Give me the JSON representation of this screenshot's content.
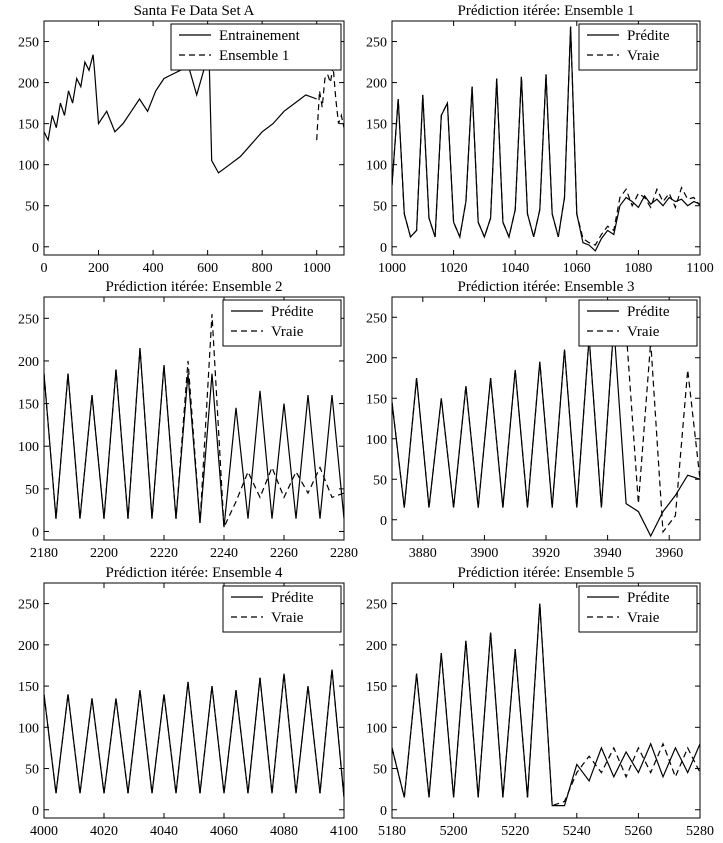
{
  "colors": {
    "line": "#000000",
    "background": "#ffffff"
  },
  "chart_data": [
    {
      "type": "line",
      "title": "Santa Fe Data Set A",
      "xlim": [
        0,
        1100
      ],
      "ylim": [
        -10,
        275
      ],
      "xticks": [
        0,
        200,
        400,
        600,
        800,
        1000
      ],
      "yticks": [
        0,
        50,
        100,
        150,
        200,
        250
      ],
      "legend_position": "top-right",
      "legend": [
        "Entrainement",
        "Ensemble 1"
      ],
      "series": [
        {
          "name": "Entrainement",
          "style": "solid",
          "x": [
            0,
            15,
            30,
            45,
            60,
            75,
            90,
            105,
            120,
            135,
            150,
            165,
            180,
            185,
            200,
            230,
            260,
            290,
            320,
            350,
            380,
            410,
            440,
            470,
            500,
            530,
            560,
            590,
            605,
            615,
            640,
            680,
            720,
            760,
            800,
            840,
            880,
            920,
            960,
            1000
          ],
          "y": [
            140,
            130,
            160,
            145,
            175,
            160,
            190,
            175,
            205,
            195,
            225,
            215,
            234,
            215,
            150,
            165,
            140,
            150,
            165,
            180,
            165,
            190,
            205,
            210,
            215,
            220,
            185,
            220,
            235,
            105,
            90,
            100,
            110,
            125,
            140,
            150,
            165,
            175,
            185,
            180
          ]
        },
        {
          "name": "Ensemble 1",
          "style": "dashed",
          "x": [
            1000,
            1010,
            1020,
            1030,
            1040,
            1050,
            1060,
            1070,
            1080,
            1090,
            1100
          ],
          "y": [
            130,
            190,
            170,
            205,
            210,
            200,
            220,
            180,
            150,
            160,
            145
          ]
        }
      ]
    },
    {
      "type": "line",
      "title": "Prédiction itérée: Ensemble 1",
      "xlim": [
        1000,
        1100
      ],
      "ylim": [
        -10,
        275
      ],
      "xticks": [
        1000,
        1020,
        1040,
        1060,
        1080,
        1100
      ],
      "yticks": [
        0,
        50,
        100,
        150,
        200,
        250
      ],
      "legend_position": "top-right",
      "legend": [
        "Prédite",
        "Vraie"
      ],
      "series": [
        {
          "name": "Prédite",
          "style": "solid",
          "x": [
            1000,
            1002,
            1004,
            1006,
            1008,
            1010,
            1012,
            1014,
            1016,
            1018,
            1020,
            1022,
            1024,
            1026,
            1028,
            1030,
            1032,
            1034,
            1036,
            1038,
            1040,
            1042,
            1044,
            1046,
            1048,
            1050,
            1052,
            1054,
            1056,
            1058,
            1060,
            1062,
            1064,
            1066,
            1068,
            1070,
            1072,
            1074,
            1076,
            1078,
            1080,
            1082,
            1084,
            1086,
            1088,
            1090,
            1092,
            1094,
            1096,
            1098,
            1100
          ],
          "y": [
            75,
            180,
            40,
            12,
            20,
            185,
            35,
            12,
            160,
            175,
            30,
            12,
            55,
            195,
            30,
            12,
            35,
            205,
            30,
            12,
            45,
            207,
            40,
            12,
            45,
            210,
            40,
            12,
            60,
            268,
            40,
            5,
            2,
            -5,
            10,
            20,
            15,
            50,
            60,
            55,
            48,
            62,
            52,
            58,
            50,
            60,
            55,
            58,
            50,
            55,
            52
          ]
        },
        {
          "name": "Vraie",
          "style": "dashed",
          "x": [
            1000,
            1002,
            1004,
            1006,
            1008,
            1010,
            1012,
            1014,
            1016,
            1018,
            1020,
            1022,
            1024,
            1026,
            1028,
            1030,
            1032,
            1034,
            1036,
            1038,
            1040,
            1042,
            1044,
            1046,
            1048,
            1050,
            1052,
            1054,
            1056,
            1058,
            1060,
            1062,
            1064,
            1066,
            1068,
            1070,
            1072,
            1074,
            1076,
            1078,
            1080,
            1082,
            1084,
            1086,
            1088,
            1090,
            1092,
            1094,
            1096,
            1098,
            1100
          ],
          "y": [
            75,
            180,
            40,
            12,
            20,
            185,
            35,
            12,
            160,
            175,
            30,
            12,
            55,
            195,
            30,
            12,
            35,
            205,
            30,
            12,
            45,
            207,
            40,
            12,
            45,
            210,
            40,
            12,
            60,
            268,
            40,
            10,
            5,
            2,
            15,
            25,
            20,
            60,
            70,
            50,
            65,
            60,
            48,
            70,
            55,
            65,
            48,
            72,
            58,
            60,
            50
          ]
        }
      ]
    },
    {
      "type": "line",
      "title": "Prédiction itérée: Ensemble 2",
      "xlim": [
        2180,
        2280
      ],
      "ylim": [
        -10,
        275
      ],
      "xticks": [
        2180,
        2200,
        2220,
        2240,
        2260,
        2280
      ],
      "yticks": [
        0,
        50,
        100,
        150,
        200,
        250
      ],
      "legend_position": "top-right",
      "legend": [
        "Prédite",
        "Vraie"
      ],
      "series": [
        {
          "name": "Prédite",
          "style": "solid",
          "x": [
            2180,
            2184,
            2188,
            2192,
            2196,
            2200,
            2204,
            2208,
            2212,
            2216,
            2220,
            2224,
            2228,
            2232,
            2236,
            2240,
            2244,
            2248,
            2252,
            2256,
            2260,
            2264,
            2268,
            2272,
            2276,
            2280
          ],
          "y": [
            185,
            15,
            185,
            15,
            160,
            15,
            190,
            15,
            215,
            15,
            195,
            15,
            185,
            10,
            185,
            5,
            145,
            15,
            165,
            15,
            150,
            15,
            160,
            15,
            160,
            15
          ]
        },
        {
          "name": "Vraie",
          "style": "dashed",
          "x": [
            2180,
            2184,
            2188,
            2192,
            2196,
            2200,
            2204,
            2208,
            2212,
            2216,
            2220,
            2224,
            2228,
            2232,
            2236,
            2240,
            2244,
            2248,
            2252,
            2256,
            2260,
            2264,
            2268,
            2272,
            2276,
            2280
          ],
          "y": [
            185,
            15,
            185,
            15,
            160,
            15,
            190,
            15,
            215,
            15,
            195,
            15,
            200,
            10,
            255,
            5,
            35,
            70,
            40,
            75,
            40,
            70,
            45,
            75,
            40,
            45
          ]
        }
      ]
    },
    {
      "type": "line",
      "title": "Prédiction itérée: Ensemble 3",
      "xlim": [
        3870,
        3970
      ],
      "ylim": [
        -25,
        275
      ],
      "xticks": [
        3880,
        3900,
        3920,
        3940,
        3960
      ],
      "yticks": [
        0,
        50,
        100,
        150,
        200,
        250
      ],
      "legend_position": "top-right",
      "legend": [
        "Prédite",
        "Vraie"
      ],
      "series": [
        {
          "name": "Prédite",
          "style": "solid",
          "x": [
            3870,
            3874,
            3878,
            3882,
            3886,
            3890,
            3894,
            3898,
            3902,
            3906,
            3910,
            3914,
            3918,
            3922,
            3926,
            3930,
            3934,
            3938,
            3942,
            3946,
            3950,
            3954,
            3958,
            3962,
            3966,
            3970
          ],
          "y": [
            145,
            15,
            175,
            15,
            150,
            15,
            165,
            15,
            175,
            15,
            185,
            15,
            195,
            15,
            210,
            15,
            225,
            15,
            240,
            20,
            10,
            -20,
            10,
            30,
            55,
            50
          ]
        },
        {
          "name": "Vraie",
          "style": "dashed",
          "x": [
            3870,
            3874,
            3878,
            3882,
            3886,
            3890,
            3894,
            3898,
            3902,
            3906,
            3910,
            3914,
            3918,
            3922,
            3926,
            3930,
            3934,
            3938,
            3942,
            3946,
            3950,
            3954,
            3958,
            3962,
            3966,
            3970
          ],
          "y": [
            145,
            15,
            175,
            15,
            150,
            15,
            165,
            15,
            175,
            15,
            185,
            15,
            195,
            15,
            210,
            15,
            225,
            15,
            240,
            235,
            20,
            220,
            -15,
            5,
            185,
            50
          ]
        }
      ]
    },
    {
      "type": "line",
      "title": "Prédiction itérée: Ensemble 4",
      "xlim": [
        4000,
        4100
      ],
      "ylim": [
        -10,
        275
      ],
      "xticks": [
        4000,
        4020,
        4040,
        4060,
        4080,
        4100
      ],
      "yticks": [
        0,
        50,
        100,
        150,
        200,
        250
      ],
      "legend_position": "top-right",
      "legend": [
        "Prédite",
        "Vraie"
      ],
      "series": [
        {
          "name": "Prédite",
          "style": "solid",
          "x": [
            4000,
            4004,
            4008,
            4012,
            4016,
            4020,
            4024,
            4028,
            4032,
            4036,
            4040,
            4044,
            4048,
            4052,
            4056,
            4060,
            4064,
            4068,
            4072,
            4076,
            4080,
            4084,
            4088,
            4092,
            4096,
            4100
          ],
          "y": [
            140,
            20,
            140,
            20,
            135,
            20,
            135,
            20,
            145,
            20,
            140,
            20,
            155,
            20,
            150,
            20,
            145,
            20,
            160,
            20,
            165,
            20,
            150,
            20,
            170,
            15
          ]
        },
        {
          "name": "Vraie",
          "style": "dashed",
          "x": [
            4000,
            4004,
            4008,
            4012,
            4016,
            4020,
            4024,
            4028,
            4032,
            4036,
            4040,
            4044,
            4048,
            4052,
            4056,
            4060,
            4064,
            4068,
            4072,
            4076,
            4080,
            4084,
            4088,
            4092,
            4096,
            4100
          ],
          "y": [
            140,
            20,
            140,
            20,
            135,
            20,
            135,
            20,
            145,
            20,
            140,
            20,
            155,
            20,
            150,
            20,
            145,
            20,
            160,
            20,
            165,
            20,
            150,
            20,
            170,
            15
          ]
        }
      ]
    },
    {
      "type": "line",
      "title": "Prédiction itérée: Ensemble 5",
      "xlim": [
        5180,
        5280
      ],
      "ylim": [
        -10,
        275
      ],
      "xticks": [
        5180,
        5200,
        5220,
        5240,
        5260,
        5280
      ],
      "yticks": [
        0,
        50,
        100,
        150,
        200,
        250
      ],
      "legend_position": "top-right",
      "legend": [
        "Prédite",
        "Vraie"
      ],
      "series": [
        {
          "name": "Prédite",
          "style": "solid",
          "x": [
            5180,
            5184,
            5188,
            5192,
            5196,
            5200,
            5204,
            5208,
            5212,
            5216,
            5220,
            5224,
            5228,
            5232,
            5236,
            5240,
            5244,
            5248,
            5252,
            5256,
            5260,
            5264,
            5268,
            5272,
            5276,
            5280
          ],
          "y": [
            75,
            15,
            165,
            15,
            190,
            15,
            205,
            15,
            215,
            15,
            195,
            15,
            250,
            5,
            5,
            55,
            35,
            75,
            40,
            70,
            45,
            80,
            40,
            75,
            45,
            80
          ]
        },
        {
          "name": "Vraie",
          "style": "dashed",
          "x": [
            5180,
            5184,
            5188,
            5192,
            5196,
            5200,
            5204,
            5208,
            5212,
            5216,
            5220,
            5224,
            5228,
            5232,
            5236,
            5240,
            5244,
            5248,
            5252,
            5256,
            5260,
            5264,
            5268,
            5272,
            5276,
            5280
          ],
          "y": [
            75,
            15,
            165,
            15,
            190,
            15,
            205,
            15,
            215,
            15,
            195,
            15,
            250,
            5,
            10,
            45,
            65,
            45,
            75,
            40,
            75,
            45,
            80,
            40,
            75,
            45
          ]
        }
      ]
    }
  ]
}
